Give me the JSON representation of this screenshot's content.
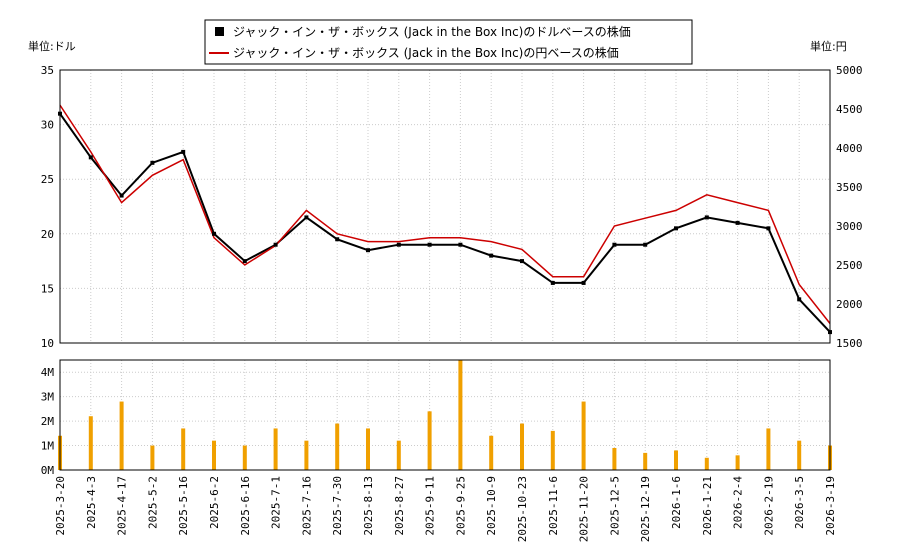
{
  "chart_data": {
    "type": "line",
    "title": "",
    "legend": {
      "placement": "top-center",
      "entries": [
        {
          "label": "ジャック・イン・ザ・ボックス (Jack in the Box Inc)のドルベースの株価",
          "color": "#000000",
          "marker": "square"
        },
        {
          "label": "ジャック・イン・ザ・ボックス (Jack in the Box Inc)の円ベースの株価",
          "color": "#cc0000",
          "marker": "line"
        }
      ]
    },
    "left_unit_label": "単位:ドル",
    "right_unit_label": "単位:円",
    "price_axis_left": {
      "min": 10,
      "max": 35,
      "ticks": [
        "10",
        "15",
        "20",
        "25",
        "30",
        "35"
      ],
      "tick_values": [
        10,
        15,
        20,
        25,
        30,
        35
      ]
    },
    "price_axis_right": {
      "min": 1500,
      "max": 5000,
      "ticks": [
        "1500",
        "2000",
        "2500",
        "3000",
        "3500",
        "4000",
        "4500",
        "5000"
      ],
      "tick_values": [
        1500,
        2000,
        2500,
        3000,
        3500,
        4000,
        4500,
        5000
      ]
    },
    "volume_axis": {
      "min": 0,
      "max": 4.5,
      "ticks": [
        "0M",
        "1M",
        "2M",
        "3M",
        "4M"
      ],
      "tick_values": [
        0,
        1,
        2,
        3,
        4
      ]
    },
    "x_ticks": [
      "2025-3-20",
      "2025-4-3",
      "2025-4-17",
      "2025-5-2",
      "2025-5-16",
      "2025-6-2",
      "2025-6-16",
      "2025-7-1",
      "2025-7-16",
      "2025-7-30",
      "2025-8-13",
      "2025-8-27",
      "2025-9-11",
      "2025-9-25",
      "2025-10-9",
      "2025-10-23",
      "2025-11-6",
      "2025-11-20",
      "2025-12-5",
      "2025-12-19",
      "2026-1-6",
      "2026-1-21",
      "2026-2-4",
      "2026-2-19",
      "2026-3-5",
      "2026-3-19"
    ],
    "grid": true,
    "series": [
      {
        "name": "ジャック・イン・ザ・ボックス (Jack in the Box Inc)のドルベースの株価",
        "x": [
          "2025-3-20",
          "2025-4-3",
          "2025-4-17",
          "2025-5-2",
          "2025-5-16",
          "2025-6-2",
          "2025-6-16",
          "2025-7-1",
          "2025-7-16",
          "2025-7-30",
          "2025-8-13",
          "2025-8-27",
          "2025-9-11",
          "2025-9-25",
          "2025-10-9",
          "2025-10-23",
          "2025-11-6",
          "2025-11-20",
          "2025-12-5",
          "2025-12-19",
          "2026-1-6",
          "2026-1-21",
          "2026-2-4",
          "2026-2-19",
          "2026-3-5",
          "2026-3-19"
        ],
        "values": [
          31.0,
          27.0,
          23.5,
          26.5,
          27.5,
          20.0,
          17.5,
          19.0,
          21.5,
          19.5,
          18.5,
          19.0,
          19.0,
          19.0,
          18.0,
          17.5,
          15.5,
          15.5,
          19.0,
          19.0,
          20.5,
          21.5,
          21.0,
          20.5,
          14.0,
          11.0
        ]
      },
      {
        "name": "ジャック・イン・ザ・ボックス (Jack in the Box Inc)の円ベースの株価",
        "x": [
          "2025-3-20",
          "2025-4-3",
          "2025-4-17",
          "2025-5-2",
          "2025-5-16",
          "2025-6-2",
          "2025-6-16",
          "2025-7-1",
          "2025-7-16",
          "2025-7-30",
          "2025-8-13",
          "2025-8-27",
          "2025-9-11",
          "2025-9-25",
          "2025-10-9",
          "2025-10-23",
          "2025-11-6",
          "2025-11-20",
          "2025-12-5",
          "2025-12-19",
          "2026-1-6",
          "2026-1-21",
          "2026-2-4",
          "2026-2-19",
          "2026-3-5",
          "2026-3-19"
        ],
        "values": [
          4550,
          3950,
          3300,
          3650,
          3850,
          2850,
          2500,
          2750,
          3200,
          2900,
          2800,
          2800,
          2850,
          2850,
          2800,
          2700,
          2350,
          2350,
          3000,
          3100,
          3200,
          3400,
          3300,
          3200,
          2250,
          1750
        ]
      }
    ],
    "volume": {
      "x": [
        "2025-3-20",
        "2025-4-3",
        "2025-4-17",
        "2025-5-2",
        "2025-5-16",
        "2025-6-2",
        "2025-6-16",
        "2025-7-1",
        "2025-7-16",
        "2025-7-30",
        "2025-8-13",
        "2025-8-27",
        "2025-9-11",
        "2025-9-25",
        "2025-10-9",
        "2025-10-23",
        "2025-11-6",
        "2025-11-20",
        "2025-12-5",
        "2025-12-19",
        "2026-1-6",
        "2026-1-21",
        "2026-2-4",
        "2026-2-19",
        "2026-3-5",
        "2026-3-19"
      ],
      "values": [
        1.4,
        2.2,
        2.8,
        1.0,
        1.7,
        1.2,
        1.0,
        1.7,
        1.2,
        1.9,
        1.7,
        1.2,
        2.4,
        4.5,
        1.4,
        1.9,
        1.6,
        2.8,
        0.9,
        0.7,
        0.8,
        0.5,
        0.6,
        1.7,
        1.2,
        1.0
      ],
      "color": "#f0a000"
    }
  }
}
